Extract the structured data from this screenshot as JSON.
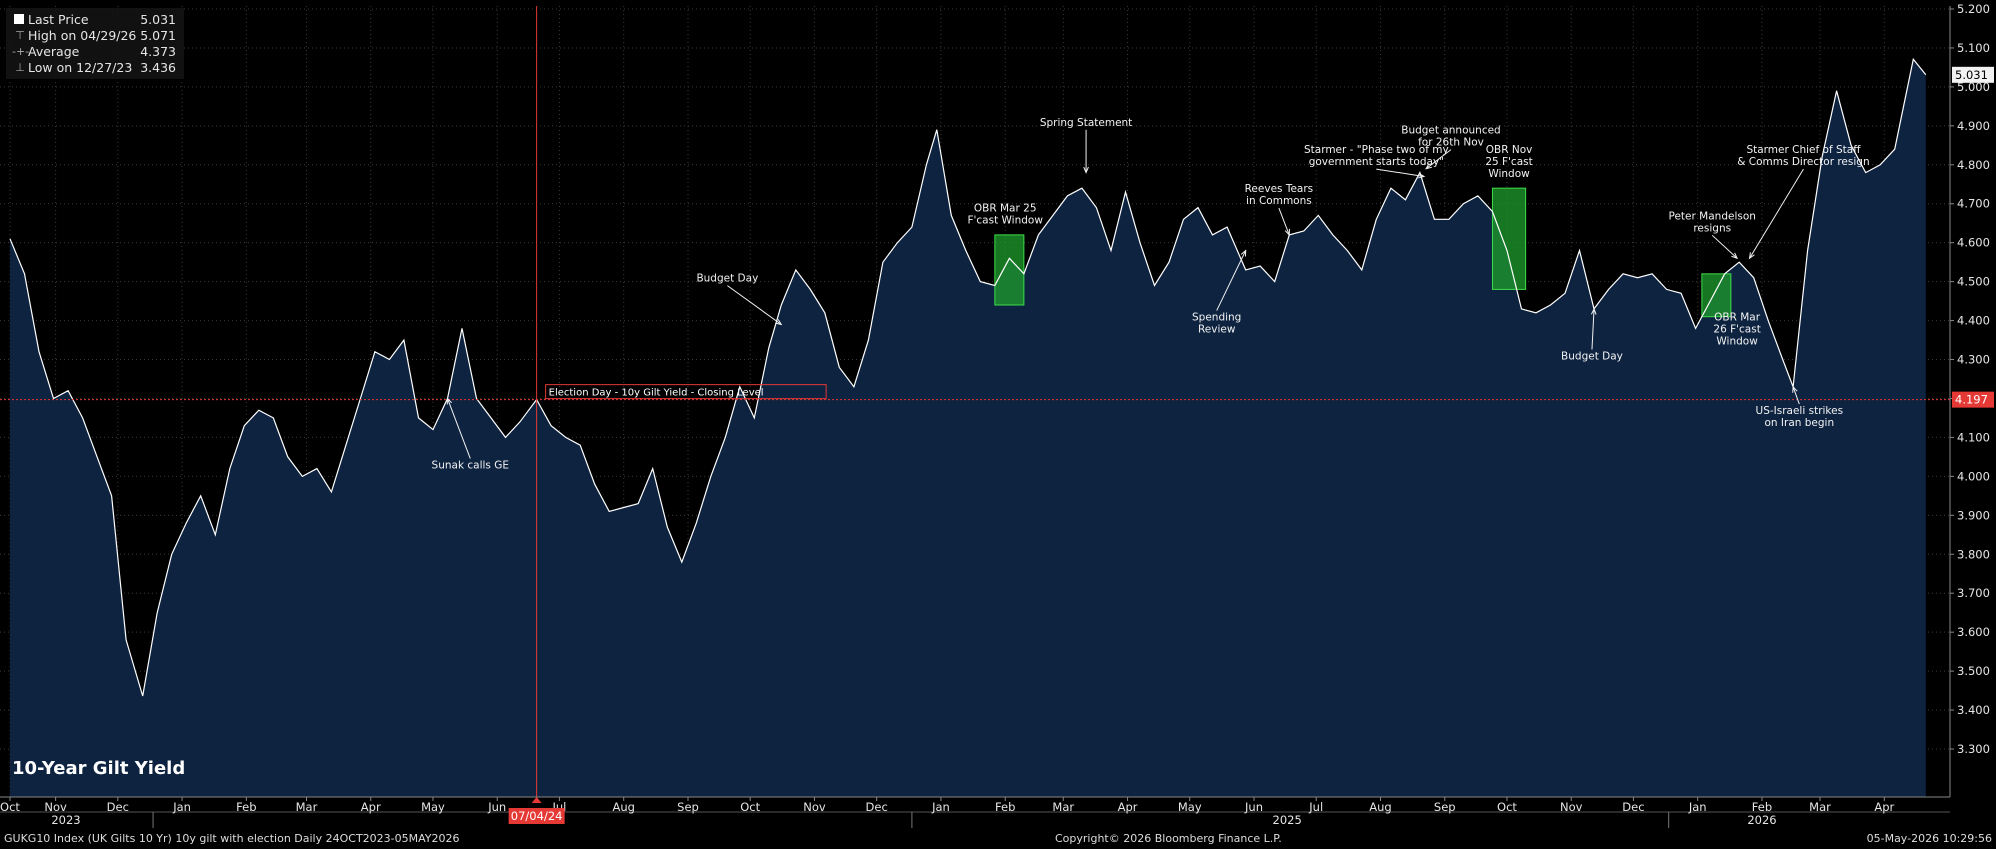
{
  "legend": {
    "last": {
      "label": "Last Price",
      "value": "5.031"
    },
    "high": {
      "label": "High on 04/29/26",
      "value": "5.071"
    },
    "average": {
      "label": "Average",
      "value": "4.373"
    },
    "low": {
      "label": "Low on 12/27/23",
      "value": "3.436"
    }
  },
  "footer": {
    "left": "GUKG10 Index (UK Gilts 10 Yr) 10y gilt with election Daily 24OCT2023-05MAY2026",
    "center": "Copyright© 2026 Bloomberg Finance L.P.",
    "right": "05-May-2026 10:29:56"
  },
  "colors": {
    "background": "#000000",
    "area": "#0d2340",
    "line": "#ffffff",
    "reference": "#e53935",
    "window": "#1f9e2c"
  },
  "chart_data": {
    "type": "area",
    "title": "10-Year Gilt Yield",
    "ylim": [
      3.3,
      5.2
    ],
    "y_ticks": [
      "3.300",
      "3.400",
      "3.500",
      "3.600",
      "3.700",
      "3.800",
      "3.900",
      "4.000",
      "4.100",
      "4.200",
      "4.300",
      "4.400",
      "4.500",
      "4.600",
      "4.700",
      "4.800",
      "4.900",
      "5.000",
      "5.100",
      "5.200"
    ],
    "grid": true,
    "legend_position": "top-left",
    "last_price_label": "5.031",
    "reference_line": {
      "value": 4.197,
      "label": "4.197",
      "caption": "Election Day - 10y Gilt Yield - Closing Level"
    },
    "marker_date": {
      "date": "2024-07-04",
      "label": "07/04/24"
    },
    "months": [
      {
        "label": "Oct",
        "date": "2023-10-24"
      },
      {
        "label": "Nov",
        "date": "2023-11-15"
      },
      {
        "label": "Dec",
        "date": "2023-12-15"
      },
      {
        "label": "Jan",
        "date": "2024-01-15"
      },
      {
        "label": "Feb",
        "date": "2024-02-15"
      },
      {
        "label": "Mar",
        "date": "2024-03-15"
      },
      {
        "label": "Apr",
        "date": "2024-04-15"
      },
      {
        "label": "May",
        "date": "2024-05-15"
      },
      {
        "label": "Jun",
        "date": "2024-06-15"
      },
      {
        "label": "Jul",
        "date": "2024-07-15"
      },
      {
        "label": "Aug",
        "date": "2024-08-15"
      },
      {
        "label": "Sep",
        "date": "2024-09-15"
      },
      {
        "label": "Oct",
        "date": "2024-10-15"
      },
      {
        "label": "Nov",
        "date": "2024-11-15"
      },
      {
        "label": "Dec",
        "date": "2024-12-15"
      },
      {
        "label": "Jan",
        "date": "2025-01-15"
      },
      {
        "label": "Feb",
        "date": "2025-02-15"
      },
      {
        "label": "Mar",
        "date": "2025-03-15"
      },
      {
        "label": "Apr",
        "date": "2025-04-15"
      },
      {
        "label": "May",
        "date": "2025-05-15"
      },
      {
        "label": "Jun",
        "date": "2025-06-15"
      },
      {
        "label": "Jul",
        "date": "2025-07-15"
      },
      {
        "label": "Aug",
        "date": "2025-08-15"
      },
      {
        "label": "Sep",
        "date": "2025-09-15"
      },
      {
        "label": "Oct",
        "date": "2025-10-15"
      },
      {
        "label": "Nov",
        "date": "2025-11-15"
      },
      {
        "label": "Dec",
        "date": "2025-12-15"
      },
      {
        "label": "Jan",
        "date": "2026-01-15"
      },
      {
        "label": "Feb",
        "date": "2026-02-15"
      },
      {
        "label": "Mar",
        "date": "2026-03-15"
      },
      {
        "label": "Apr",
        "date": "2026-04-15"
      }
    ],
    "years": [
      {
        "label": "2023",
        "date": "2023-11-20"
      },
      {
        "label": "2025",
        "date": "2025-07-01"
      },
      {
        "label": "2026",
        "date": "2026-02-15"
      }
    ],
    "year_dividers": [
      "2024-01-01",
      "2025-01-01",
      "2026-01-01"
    ],
    "series": [
      {
        "points": [
          [
            "2023-10-24",
            4.61
          ],
          [
            "2023-10-31",
            4.52
          ],
          [
            "2023-11-07",
            4.32
          ],
          [
            "2023-11-14",
            4.2
          ],
          [
            "2023-11-21",
            4.22
          ],
          [
            "2023-11-28",
            4.15
          ],
          [
            "2023-12-05",
            4.05
          ],
          [
            "2023-12-12",
            3.95
          ],
          [
            "2023-12-19",
            3.58
          ],
          [
            "2023-12-27",
            3.436
          ],
          [
            "2024-01-03",
            3.65
          ],
          [
            "2024-01-10",
            3.8
          ],
          [
            "2024-01-17",
            3.88
          ],
          [
            "2024-01-24",
            3.95
          ],
          [
            "2024-01-31",
            3.85
          ],
          [
            "2024-02-07",
            4.02
          ],
          [
            "2024-02-14",
            4.13
          ],
          [
            "2024-02-21",
            4.17
          ],
          [
            "2024-02-28",
            4.15
          ],
          [
            "2024-03-06",
            4.05
          ],
          [
            "2024-03-13",
            4.0
          ],
          [
            "2024-03-20",
            4.02
          ],
          [
            "2024-03-27",
            3.96
          ],
          [
            "2024-04-03",
            4.08
          ],
          [
            "2024-04-10",
            4.2
          ],
          [
            "2024-04-17",
            4.32
          ],
          [
            "2024-04-24",
            4.3
          ],
          [
            "2024-05-01",
            4.35
          ],
          [
            "2024-05-08",
            4.15
          ],
          [
            "2024-05-15",
            4.12
          ],
          [
            "2024-05-22",
            4.2
          ],
          [
            "2024-05-29",
            4.38
          ],
          [
            "2024-06-05",
            4.2
          ],
          [
            "2024-06-12",
            4.15
          ],
          [
            "2024-06-19",
            4.1
          ],
          [
            "2024-06-26",
            4.14
          ],
          [
            "2024-07-04",
            4.197
          ],
          [
            "2024-07-11",
            4.13
          ],
          [
            "2024-07-18",
            4.1
          ],
          [
            "2024-07-25",
            4.08
          ],
          [
            "2024-08-01",
            3.98
          ],
          [
            "2024-08-08",
            3.91
          ],
          [
            "2024-08-15",
            3.92
          ],
          [
            "2024-08-22",
            3.93
          ],
          [
            "2024-08-29",
            4.02
          ],
          [
            "2024-09-05",
            3.87
          ],
          [
            "2024-09-12",
            3.78
          ],
          [
            "2024-09-19",
            3.88
          ],
          [
            "2024-09-26",
            4.0
          ],
          [
            "2024-10-03",
            4.1
          ],
          [
            "2024-10-10",
            4.23
          ],
          [
            "2024-10-17",
            4.15
          ],
          [
            "2024-10-24",
            4.33
          ],
          [
            "2024-10-30",
            4.44
          ],
          [
            "2024-11-06",
            4.53
          ],
          [
            "2024-11-13",
            4.48
          ],
          [
            "2024-11-20",
            4.42
          ],
          [
            "2024-11-27",
            4.28
          ],
          [
            "2024-12-04",
            4.23
          ],
          [
            "2024-12-11",
            4.35
          ],
          [
            "2024-12-18",
            4.55
          ],
          [
            "2024-12-25",
            4.6
          ],
          [
            "2025-01-01",
            4.64
          ],
          [
            "2025-01-08",
            4.8
          ],
          [
            "2025-01-13",
            4.89
          ],
          [
            "2025-01-20",
            4.67
          ],
          [
            "2025-01-27",
            4.58
          ],
          [
            "2025-02-03",
            4.5
          ],
          [
            "2025-02-10",
            4.49
          ],
          [
            "2025-02-17",
            4.56
          ],
          [
            "2025-02-24",
            4.52
          ],
          [
            "2025-03-03",
            4.62
          ],
          [
            "2025-03-10",
            4.67
          ],
          [
            "2025-03-17",
            4.72
          ],
          [
            "2025-03-24",
            4.74
          ],
          [
            "2025-03-31",
            4.69
          ],
          [
            "2025-04-07",
            4.58
          ],
          [
            "2025-04-14",
            4.73
          ],
          [
            "2025-04-21",
            4.6
          ],
          [
            "2025-04-28",
            4.49
          ],
          [
            "2025-05-05",
            4.55
          ],
          [
            "2025-05-12",
            4.66
          ],
          [
            "2025-05-19",
            4.69
          ],
          [
            "2025-05-26",
            4.62
          ],
          [
            "2025-06-02",
            4.64
          ],
          [
            "2025-06-11",
            4.53
          ],
          [
            "2025-06-18",
            4.54
          ],
          [
            "2025-06-25",
            4.5
          ],
          [
            "2025-07-02",
            4.62
          ],
          [
            "2025-07-09",
            4.63
          ],
          [
            "2025-07-16",
            4.67
          ],
          [
            "2025-07-23",
            4.62
          ],
          [
            "2025-07-30",
            4.58
          ],
          [
            "2025-08-06",
            4.53
          ],
          [
            "2025-08-13",
            4.66
          ],
          [
            "2025-08-20",
            4.74
          ],
          [
            "2025-08-27",
            4.71
          ],
          [
            "2025-09-03",
            4.78
          ],
          [
            "2025-09-10",
            4.66
          ],
          [
            "2025-09-17",
            4.66
          ],
          [
            "2025-09-24",
            4.7
          ],
          [
            "2025-10-01",
            4.72
          ],
          [
            "2025-10-08",
            4.68
          ],
          [
            "2025-10-15",
            4.58
          ],
          [
            "2025-10-22",
            4.43
          ],
          [
            "2025-10-29",
            4.42
          ],
          [
            "2025-11-05",
            4.44
          ],
          [
            "2025-11-12",
            4.47
          ],
          [
            "2025-11-19",
            4.58
          ],
          [
            "2025-11-26",
            4.43
          ],
          [
            "2025-12-03",
            4.48
          ],
          [
            "2025-12-10",
            4.52
          ],
          [
            "2025-12-17",
            4.51
          ],
          [
            "2025-12-24",
            4.52
          ],
          [
            "2025-12-31",
            4.48
          ],
          [
            "2026-01-07",
            4.47
          ],
          [
            "2026-01-14",
            4.38
          ],
          [
            "2026-01-21",
            4.45
          ],
          [
            "2026-01-28",
            4.52
          ],
          [
            "2026-02-04",
            4.55
          ],
          [
            "2026-02-11",
            4.51
          ],
          [
            "2026-02-18",
            4.4
          ],
          [
            "2026-02-25",
            4.3
          ],
          [
            "2026-03-02",
            4.23
          ],
          [
            "2026-03-09",
            4.58
          ],
          [
            "2026-03-16",
            4.82
          ],
          [
            "2026-03-23",
            4.99
          ],
          [
            "2026-03-30",
            4.85
          ],
          [
            "2026-04-06",
            4.78
          ],
          [
            "2026-04-13",
            4.8
          ],
          [
            "2026-04-20",
            4.84
          ],
          [
            "2026-04-29",
            5.071
          ],
          [
            "2026-05-05",
            5.031
          ]
        ]
      }
    ],
    "windows": [
      {
        "label": "OBR Mar 25 F'cast Window",
        "start": "2025-02-10",
        "end": "2025-02-24",
        "ymin": 4.44,
        "ymax": 4.62
      },
      {
        "label": "OBR Nov 25 F'cast Window",
        "start": "2025-10-08",
        "end": "2025-10-24",
        "ymin": 4.48,
        "ymax": 4.74
      },
      {
        "label": "OBR Mar 26 F'cast Window",
        "start": "2026-01-17",
        "end": "2026-01-31",
        "ymin": 4.41,
        "ymax": 4.52
      }
    ],
    "annotations": [
      {
        "lines": [
          "Sunak calls GE"
        ],
        "date": "2024-05-22",
        "value": 4.2,
        "text_date": "2024-06-02",
        "text_value": 4.02,
        "anchor": "middle"
      },
      {
        "lines": [
          "Budget Day"
        ],
        "date": "2024-10-30",
        "value": 4.39,
        "text_date": "2024-10-04",
        "text_value": 4.5,
        "anchor": "middle"
      },
      {
        "lines": [
          "OBR Mar 25",
          "F'cast Window"
        ],
        "date": "",
        "value": 0,
        "text_date": "2025-02-15",
        "text_value": 4.68,
        "anchor": "middle"
      },
      {
        "lines": [
          "Spring Statement"
        ],
        "date": "2025-03-26",
        "value": 4.78,
        "text_date": "2025-03-26",
        "text_value": 4.9,
        "anchor": "middle"
      },
      {
        "lines": [
          "Spending",
          "Review"
        ],
        "date": "2025-06-11",
        "value": 4.58,
        "text_date": "2025-05-28",
        "text_value": 4.4,
        "anchor": "middle"
      },
      {
        "lines": [
          "Reeves Tears",
          "in Commons"
        ],
        "date": "2025-07-02",
        "value": 4.62,
        "text_date": "2025-06-27",
        "text_value": 4.73,
        "anchor": "middle"
      },
      {
        "lines": [
          "Starmer - \"Phase two of my",
          "government starts today\""
        ],
        "date": "2025-09-05",
        "value": 4.77,
        "text_date": "2025-08-13",
        "text_value": 4.83,
        "anchor": "middle"
      },
      {
        "lines": [
          "Budget announced",
          "for 26th Nov"
        ],
        "date": "2025-09-06",
        "value": 4.79,
        "text_date": "2025-09-18",
        "text_value": 4.88,
        "anchor": "middle"
      },
      {
        "lines": [
          "OBR Nov",
          "25 F'cast",
          "Window"
        ],
        "date": "",
        "value": 0,
        "text_date": "2025-10-16",
        "text_value": 4.83,
        "anchor": "middle"
      },
      {
        "lines": [
          "Budget Day"
        ],
        "date": "2025-11-26",
        "value": 4.43,
        "text_date": "2025-11-25",
        "text_value": 4.3,
        "anchor": "middle"
      },
      {
        "lines": [
          "Peter Mandelson",
          "resigns"
        ],
        "date": "2026-02-03",
        "value": 4.56,
        "text_date": "2026-01-22",
        "text_value": 4.66,
        "anchor": "middle"
      },
      {
        "lines": [
          "OBR Mar",
          "26 F'cast",
          "Window"
        ],
        "date": "",
        "value": 0,
        "text_date": "2026-02-03",
        "text_value": 4.4,
        "anchor": "middle"
      },
      {
        "lines": [
          "Starmer Chief of Staff",
          "& Comms Director resign"
        ],
        "date": "2026-02-09",
        "value": 4.56,
        "text_date": "2026-03-07",
        "text_value": 4.83,
        "anchor": "middle"
      },
      {
        "lines": [
          "US-Israeli strikes",
          "on Iran begin"
        ],
        "date": "2026-03-02",
        "value": 4.23,
        "text_date": "2026-03-05",
        "text_value": 4.16,
        "anchor": "middle"
      }
    ]
  }
}
